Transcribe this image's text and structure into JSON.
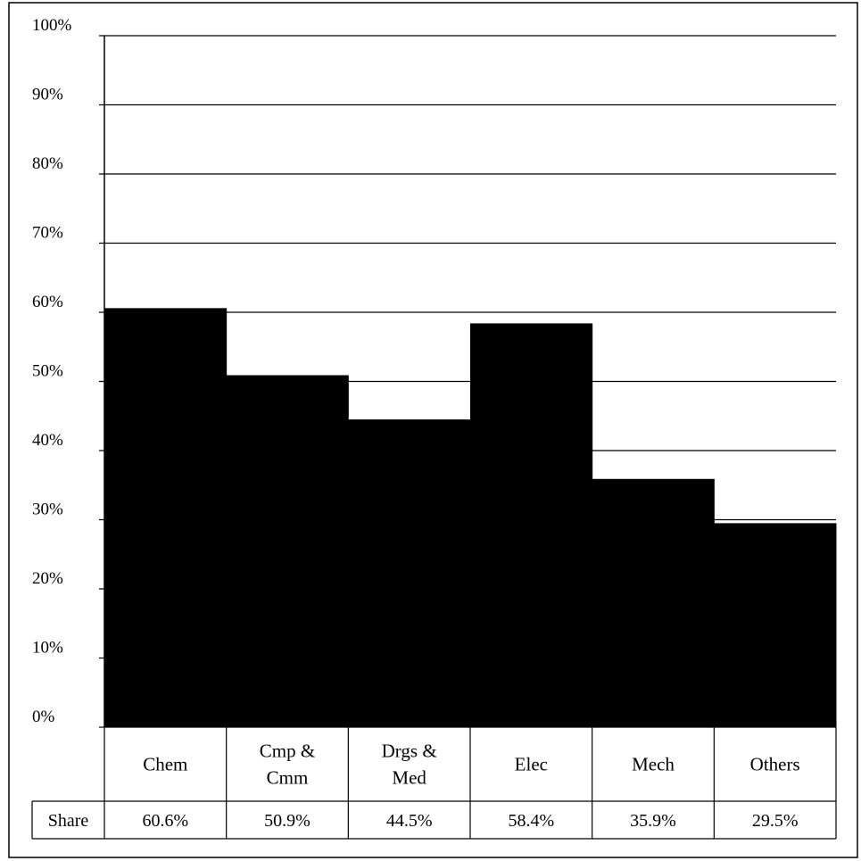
{
  "chart_data": {
    "type": "bar",
    "categories": [
      [
        "Chem"
      ],
      [
        "Cmp &",
        "Cmm"
      ],
      [
        "Drgs &",
        "Med"
      ],
      [
        "Elec"
      ],
      [
        "Mech"
      ],
      [
        "Others"
      ]
    ],
    "values": [
      60.6,
      50.9,
      44.5,
      58.4,
      35.9,
      29.5
    ],
    "value_labels": [
      "60.6%",
      "50.9%",
      "44.5%",
      "58.4%",
      "35.9%",
      "29.5%"
    ],
    "table_row_label": "Share",
    "ylim": [
      0,
      100
    ],
    "yticks": [
      "0%",
      "10%",
      "20%",
      "30%",
      "40%",
      "50%",
      "60%",
      "70%",
      "80%",
      "90%",
      "100%"
    ],
    "grid": true,
    "bar_color": "#000000"
  }
}
